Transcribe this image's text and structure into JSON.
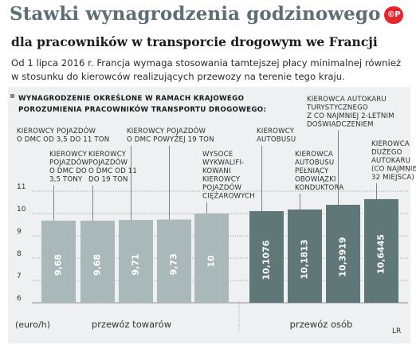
{
  "header": {
    "title": "Stawki wynagrodzenia godzinowego",
    "subtitle": "dla pracowników w transporcie drogowym we Francji",
    "logo_text": "©P",
    "intro": "Od 1 lipca 2016 r. Francja wymaga stosowania tamtejszej płacy minimalnej również w stosunku do kierowców realizujących przewozy na terenie tego kraju."
  },
  "chart_data": {
    "type": "bar",
    "title": "Wynagrodzenie określone w ramach krajowego porozumienia pracowników transportu drogowego:",
    "ylabel": "(euro/h)",
    "ylim": [
      6,
      11
    ],
    "yticks": [
      "6",
      "7",
      "8",
      "9",
      "10",
      "11"
    ],
    "categories": [
      "Kierowcy pojazdów o DMC do 3,5 tony",
      "Kierowcy pojazdów o DMC od 11 do 19 ton",
      "Kierowcy pojazdów o DMC od 3,5 do 11 ton",
      "Kierowcy pojazdów o DMC powyżej 19 ton",
      "Wysoce wykwalifikowani kierowcy pojazdów ciężarowych",
      "Kierowca autobusu",
      "Kierowca autobusu pełniący obowiązki konduktora",
      "Kierowca autokaru turystycznego z co najmniej 2-letnim doświadczeniem",
      "Kierowca dużego autokaru (co najmniej 32 miejsca)"
    ],
    "values": [
      9.68,
      9.68,
      9.71,
      9.73,
      10,
      10.1076,
      10.1813,
      10.3919,
      10.6445
    ],
    "value_labels": [
      "9,68",
      "9,68",
      "9,71",
      "9,73",
      "10",
      "10,1076",
      "10,1813",
      "10,3919",
      "10,6445"
    ],
    "group_of_bar": [
      0,
      0,
      0,
      0,
      0,
      1,
      1,
      1,
      1
    ],
    "groups": [
      "przewóz towarów",
      "przewóz osób"
    ],
    "group_colors": [
      "#a9b8b8",
      "#5f7777"
    ],
    "grid": true,
    "label_lines": [
      [
        "KIEROWCY",
        "POJAZDÓW",
        "O DMC DO",
        "3,5 TONY"
      ],
      [
        "KIEROWCY",
        "POJAZDÓW",
        "O DMC OD 11",
        "DO 19 TON"
      ],
      [
        "KIEROWCY POJAZDÓW",
        "O DMC OD 3,5 DO 11 TON"
      ],
      [
        "KIEROWCY POJAZDÓW",
        "O DMC POWYŻEJ 19 TON"
      ],
      [
        "WYSOCE",
        "WYKWALIFI-",
        "KOWANI",
        "KIEROWCY",
        "POJAZDÓW",
        "CIĘŻAROWYCH"
      ],
      [
        "KIEROWCY",
        "AUTOBUSU"
      ],
      [
        "KIEROWCA",
        "AUTOBUSU",
        "PEŁNIĄCY",
        "OBOWIĄZKI",
        "KONDUKTORA"
      ],
      [
        "KIEROWCA AUTOKARU",
        "TURYSTYCZNEGO",
        "Z CO NAJMNIEJ 2-LETNIM",
        "DOŚWIADCZENIEM"
      ],
      [
        "KIEROWCA",
        "DUŻEGO",
        "AUTOKARU",
        "(CO NAJMNIEJ",
        "32 MIEJSCA)"
      ]
    ],
    "heading_lines": [
      "WYNAGRODZENIE OKREŚLONE W RAMACH KRAJOWEGO",
      "POROZUMIENIA PRACOWNIKÓW TRANSPORTU DROGOWEGO:"
    ],
    "credit": "LR"
  }
}
